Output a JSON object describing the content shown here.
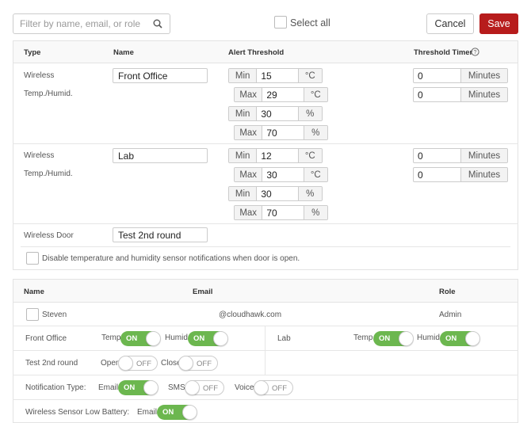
{
  "toolbar": {
    "search_placeholder": "Filter by name, email, or role",
    "select_all": "Select all",
    "cancel": "Cancel",
    "save": "Save"
  },
  "sensors": {
    "headers": {
      "type": "Type",
      "name": "Name",
      "alert": "Alert Threshold",
      "timer": "Threshold Timer"
    },
    "rows": [
      {
        "type1": "Wireless",
        "type2": "Temp./Humid.",
        "name": "Front Office",
        "temp_min": "15",
        "temp_max": "29",
        "hum_min": "30",
        "hum_max": "70",
        "timer1": "0",
        "timer2": "0"
      },
      {
        "type1": "Wireless",
        "type2": "Temp./Humid.",
        "name": "Lab",
        "temp_min": "12",
        "temp_max": "30",
        "hum_min": "30",
        "hum_max": "70",
        "timer1": "0",
        "timer2": "0"
      }
    ],
    "door": {
      "type": "Wireless Door",
      "name": "Test 2nd round"
    },
    "disable_note": "Disable temperature and humidity sensor notifications when door is open.",
    "labels": {
      "min": "Min",
      "max": "Max",
      "celsius": "°C",
      "percent": "%",
      "minutes": "Minutes"
    }
  },
  "users": {
    "headers": {
      "name": "Name",
      "email": "Email",
      "role": "Role"
    },
    "row": {
      "name": "Steven",
      "email": "@cloudhawk.com",
      "role": "Admin"
    },
    "settings": {
      "front_office": "Front Office",
      "lab": "Lab",
      "test_round": "Test 2nd round",
      "temp": "Temp.",
      "humid": "Humid.",
      "open": "Open",
      "close": "Close",
      "notification_type": "Notification Type:",
      "email": "Email",
      "sms": "SMS",
      "voice": "Voice",
      "low_battery": "Wireless Sensor Low Battery:",
      "on": "ON",
      "off": "OFF"
    }
  },
  "colors": {
    "save_bg": "#b71c1c",
    "toggle_on": "#6cb74f"
  }
}
